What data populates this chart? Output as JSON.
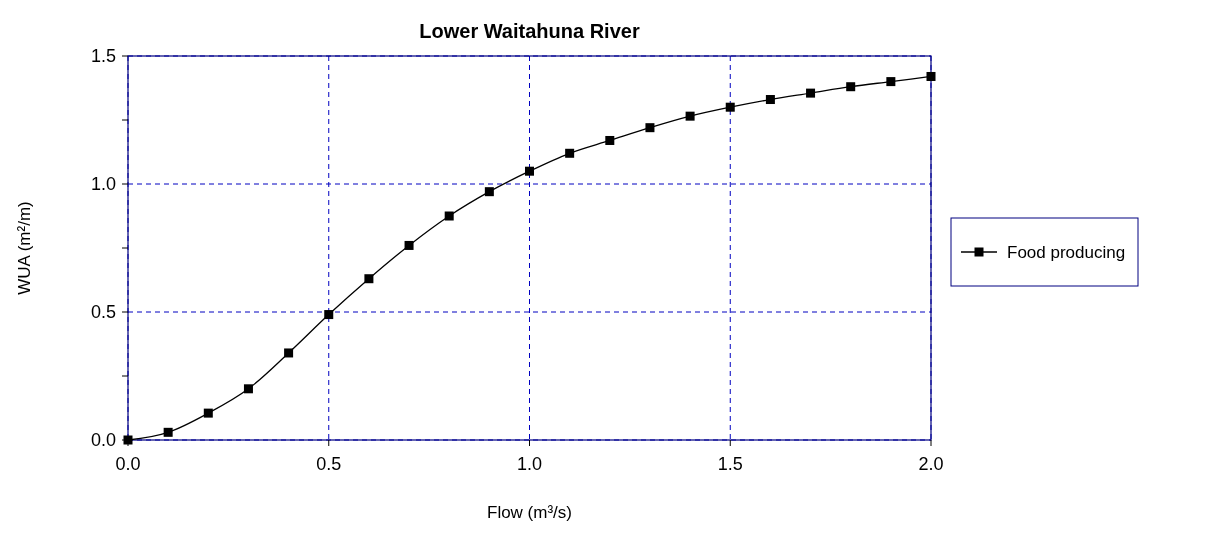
{
  "chart_data": {
    "type": "line",
    "title": "Lower Waitahuna River",
    "xlabel": "Flow (m³/s)",
    "ylabel": "WUA (m²/m)",
    "x": [
      0,
      0.1,
      0.2,
      0.3,
      0.4,
      0.5,
      0.6,
      0.7,
      0.8,
      0.9,
      1.0,
      1.1,
      1.2,
      1.3,
      1.4,
      1.5,
      1.6,
      1.7,
      1.8,
      1.9,
      2.0
    ],
    "series": [
      {
        "name": "Food producing",
        "color": "#000000",
        "values": [
          0,
          0.03,
          0.105,
          0.2,
          0.34,
          0.49,
          0.63,
          0.76,
          0.875,
          0.97,
          1.05,
          1.12,
          1.17,
          1.22,
          1.265,
          1.3,
          1.33,
          1.355,
          1.38,
          1.4,
          1.42
        ]
      }
    ],
    "xlim": [
      0,
      2
    ],
    "xticks": [
      {
        "value": 0,
        "label": "0.0"
      },
      {
        "value": 0.5,
        "label": "0.5"
      },
      {
        "value": 1,
        "label": "1.0"
      },
      {
        "value": 1.5,
        "label": "1.5"
      },
      {
        "value": 2,
        "label": "2.0"
      }
    ],
    "ylim": [
      0,
      1.5
    ],
    "yticks": [
      {
        "value": 0,
        "label": "0.0"
      },
      {
        "value": 0.25,
        "label": null
      },
      {
        "value": 0.5,
        "label": "0.5"
      },
      {
        "value": 0.75,
        "label": null
      },
      {
        "value": 1,
        "label": "1.0"
      },
      {
        "value": 1.25,
        "label": null
      },
      {
        "value": 1.5,
        "label": "1.5"
      }
    ],
    "grid": true,
    "legend": "right",
    "marker": "square",
    "line_style": "solid"
  }
}
